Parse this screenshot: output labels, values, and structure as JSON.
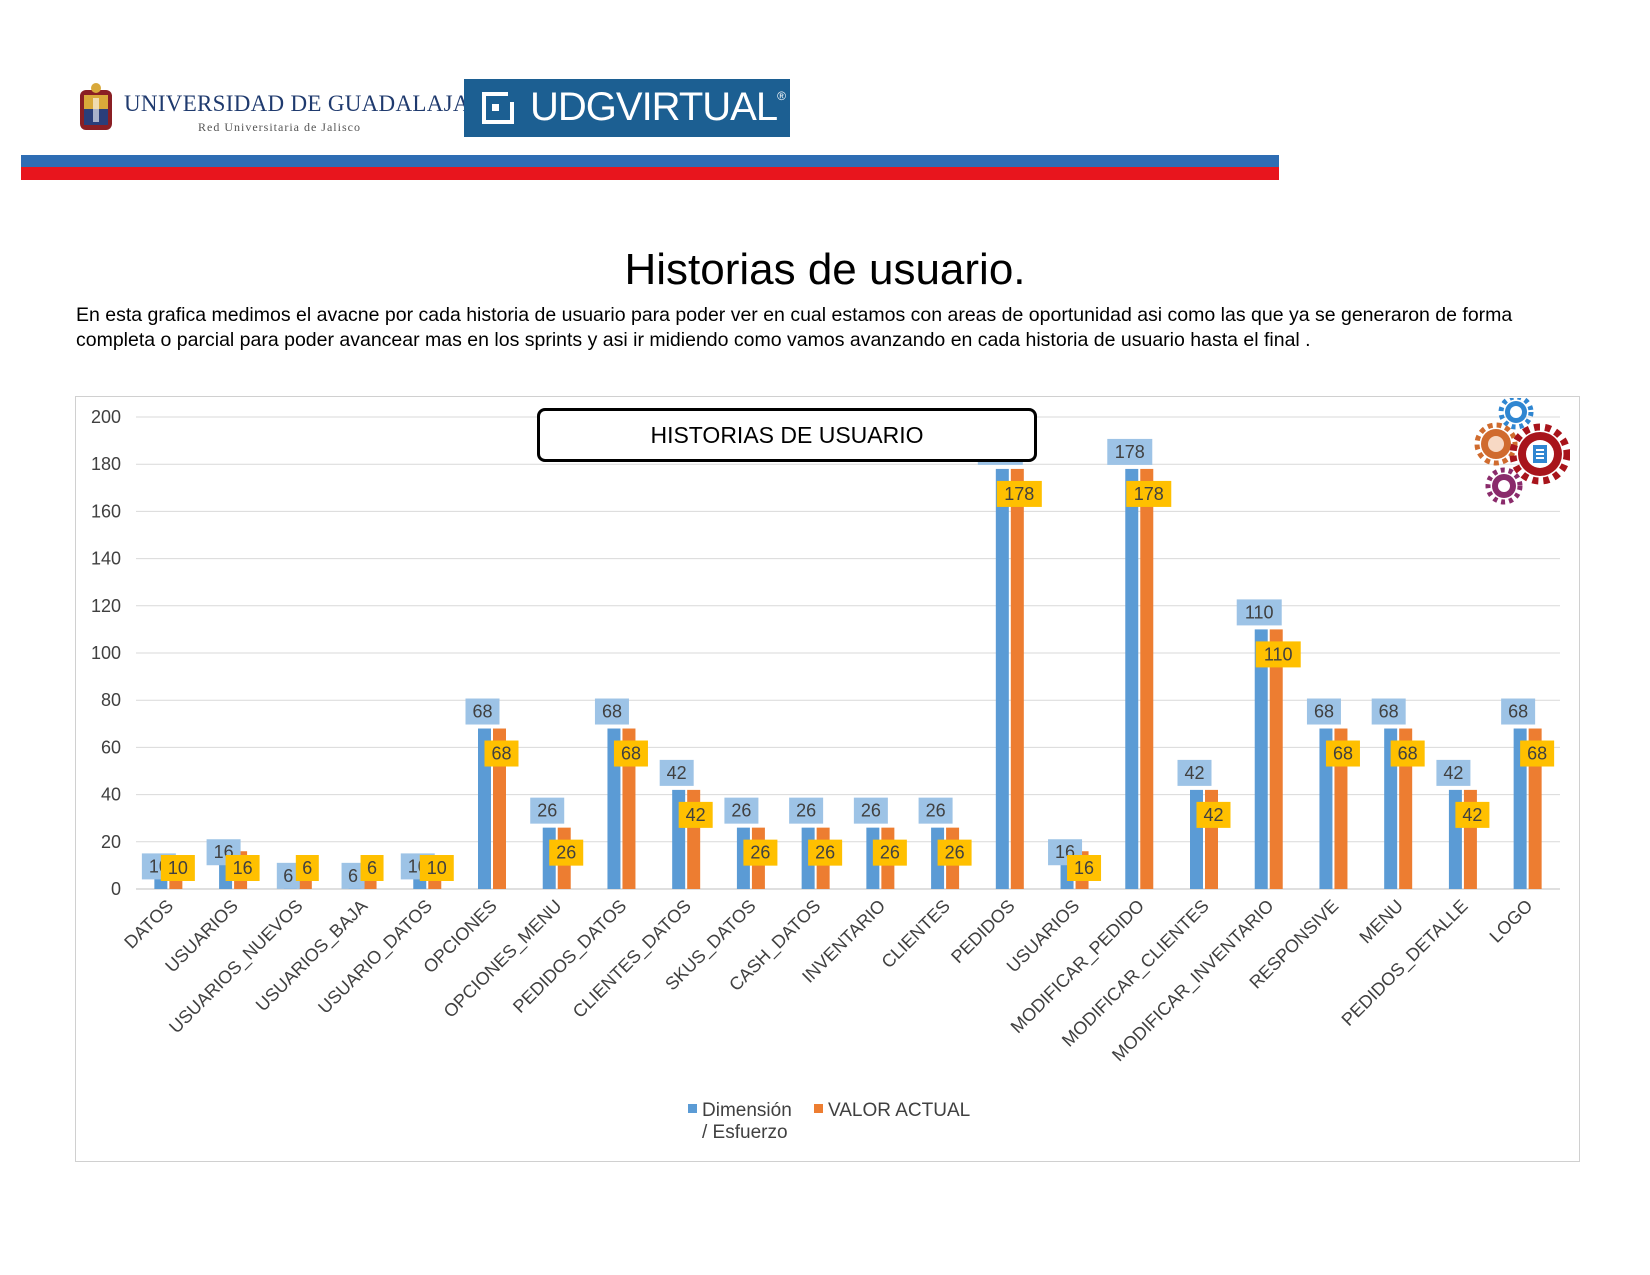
{
  "header": {
    "university_name": "UNIVERSIDAD DE GUADALAJARA",
    "university_sub": "Red Universitaria de Jalisco",
    "udg_virtual": "UDGVIRTUAL",
    "udg_mark": "®",
    "colors": {
      "blue_stripe": "#2e6db4",
      "red_stripe": "#e8151d",
      "udg_box": "#1c5f92"
    }
  },
  "page": {
    "title": "Historias de usuario.",
    "description": "En esta grafica medimos el avacne por cada historia de usuario para poder ver en cual estamos con areas de oportunidad asi como las que ya se generaron de forma completa o parcial para poder avancear mas en los sprints y asi ir midiendo como vamos avanzando en cada historia de usuario hasta el final ."
  },
  "chart_data": {
    "type": "bar",
    "title": "HISTORIAS DE USUARIO",
    "categories": [
      "DATOS",
      "USUARIOS",
      "USUARIOS_NUEVOS",
      "USUARIOS_BAJA",
      "USUARIO_DATOS",
      "OPCIONES",
      "OPCIONES_MENU",
      "PEDIDOS_DATOS",
      "CLIENTES_DATOS",
      "SKUS_DATOS",
      "CASH_DATOS",
      "INVENTARIO",
      "CLIENTES",
      "PEDIDOS",
      "USUARIOS",
      "MODIFICAR_PEDIDO",
      "MODIFICAR_CLIENTES",
      "MODIFICAR_INVENTARIO",
      "RESPONSIVE",
      "MENU",
      "PEDIDOS_DETALLE",
      "LOGO"
    ],
    "series": [
      {
        "name": "Dimensión / Esfuerzo",
        "color": "#5b9bd5",
        "label_bg": "#9dc3e6",
        "values": [
          10,
          16,
          6,
          6,
          10,
          68,
          26,
          68,
          42,
          26,
          26,
          26,
          26,
          178,
          16,
          178,
          42,
          110,
          68,
          68,
          42,
          68
        ]
      },
      {
        "name": "VALOR ACTUAL",
        "color": "#ed7d31",
        "label_bg": "#ffc000",
        "values": [
          10,
          16,
          6,
          6,
          10,
          68,
          26,
          68,
          42,
          26,
          26,
          26,
          26,
          178,
          16,
          178,
          42,
          110,
          68,
          68,
          42,
          68
        ]
      }
    ],
    "ylim": [
      0,
      200
    ],
    "yticks": [
      0,
      20,
      40,
      60,
      80,
      100,
      120,
      140,
      160,
      180,
      200
    ],
    "grid": true,
    "legend_position": "bottom",
    "legend": {
      "series1_line1": "Dimensión",
      "series1_line2": "/ Esfuerzo",
      "series2": "VALOR ACTUAL"
    }
  },
  "icons": [
    "gears-icon"
  ]
}
